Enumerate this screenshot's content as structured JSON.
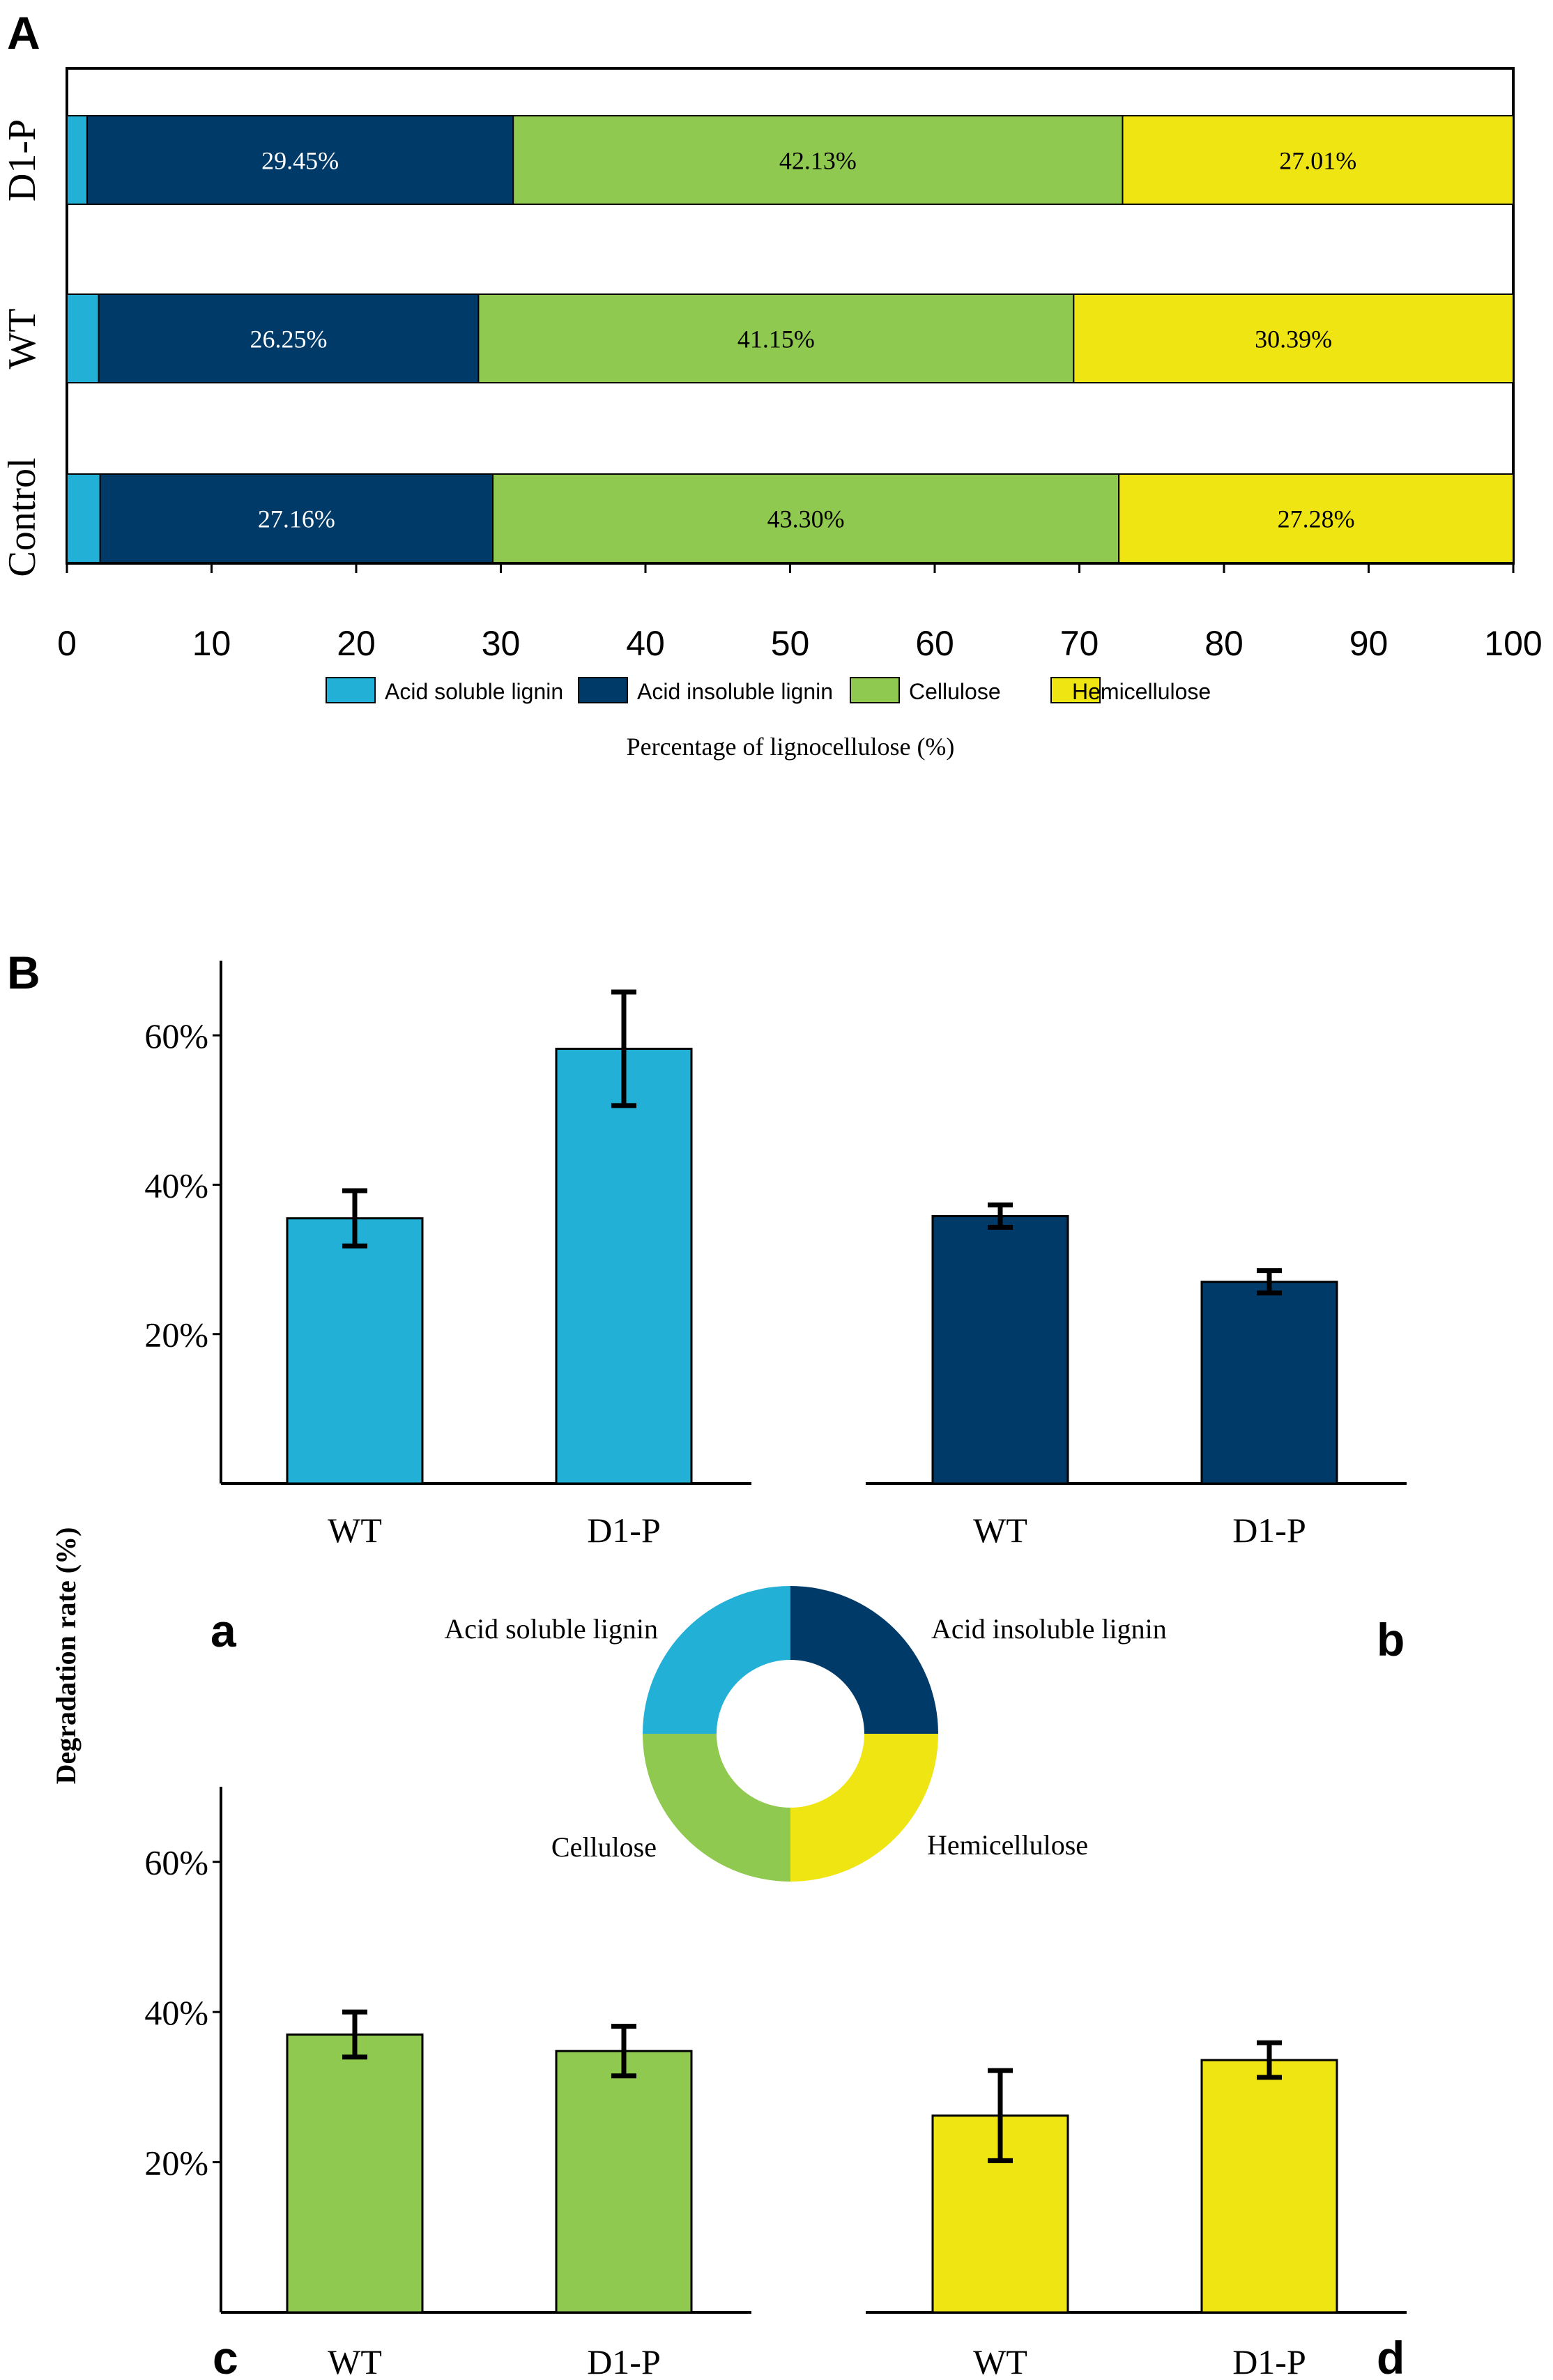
{
  "panels": {
    "A": "A",
    "B": "B",
    "sub": [
      "a",
      "b",
      "c",
      "d"
    ]
  },
  "colors": {
    "acid_soluble": "#23B0D6",
    "acid_insoluble": "#003A68",
    "cellulose": "#8FC94F",
    "hemicellulose": "#EFE513"
  },
  "chart_data": [
    {
      "id": "A",
      "type": "bar",
      "orientation": "horizontal",
      "stacked": true,
      "categories": [
        "D1-P",
        "WT",
        "Control"
      ],
      "series": [
        {
          "name": "Acid soluble lignin",
          "values": [
            1.4,
            2.2,
            2.3
          ]
        },
        {
          "name": "Acid insoluble lignin",
          "values": [
            29.45,
            26.25,
            27.16
          ]
        },
        {
          "name": "Cellulose",
          "values": [
            42.13,
            41.15,
            43.3
          ]
        },
        {
          "name": "Hemicellulose",
          "values": [
            27.01,
            30.39,
            27.28
          ]
        }
      ],
      "data_labels": [
        [
          "29.45%",
          "42.13%",
          "27.01%"
        ],
        [
          "26.25%",
          "41.15%",
          "30.39%"
        ],
        [
          "27.16%",
          "43.30%",
          "27.28%"
        ]
      ],
      "xlim": [
        0,
        100
      ],
      "xticks": [
        "0",
        "10",
        "20",
        "30",
        "40",
        "50",
        "60",
        "70",
        "80",
        "90",
        "100"
      ],
      "xlabel": "Percentage of lignocellulose (%)",
      "legend": [
        "Acid soluble lignin",
        "Acid insoluble lignin",
        "Cellulose",
        "Hemicellulose"
      ],
      "legend_position": "bottom"
    },
    {
      "id": "B-a",
      "type": "bar",
      "component": "Acid soluble lignin",
      "categories": [
        "WT",
        "D1-P"
      ],
      "values": [
        35.5,
        58.2
      ],
      "errors": [
        3.7,
        7.6
      ],
      "ylim": [
        0,
        70
      ],
      "yticks": [
        "20%",
        "40%",
        "60%"
      ]
    },
    {
      "id": "B-b",
      "type": "bar",
      "component": "Acid insoluble lignin",
      "categories": [
        "WT",
        "D1-P"
      ],
      "values": [
        35.8,
        27.0
      ],
      "errors": [
        1.5,
        1.5
      ],
      "ylim": [
        0,
        70
      ]
    },
    {
      "id": "B-c",
      "type": "bar",
      "component": "Cellulose",
      "categories": [
        "WT",
        "D1-P"
      ],
      "values": [
        37.0,
        34.8
      ],
      "errors": [
        3.0,
        3.3
      ],
      "ylim": [
        0,
        70
      ],
      "yticks": [
        "20%",
        "40%",
        "60%"
      ]
    },
    {
      "id": "B-d",
      "type": "bar",
      "component": "Hemicellulose",
      "categories": [
        "WT",
        "D1-P"
      ],
      "values": [
        26.2,
        33.6
      ],
      "errors": [
        6.0,
        2.3
      ],
      "ylim": [
        0,
        70
      ]
    },
    {
      "id": "B-donut",
      "type": "pie",
      "style": "donut",
      "labels": [
        "Acid soluble lignin",
        "Acid insoluble lignin",
        "Hemicellulose",
        "Cellulose"
      ],
      "values": [
        25,
        25,
        25,
        25
      ]
    }
  ],
  "panel_b_ylabel": "Degradation rate (%)"
}
